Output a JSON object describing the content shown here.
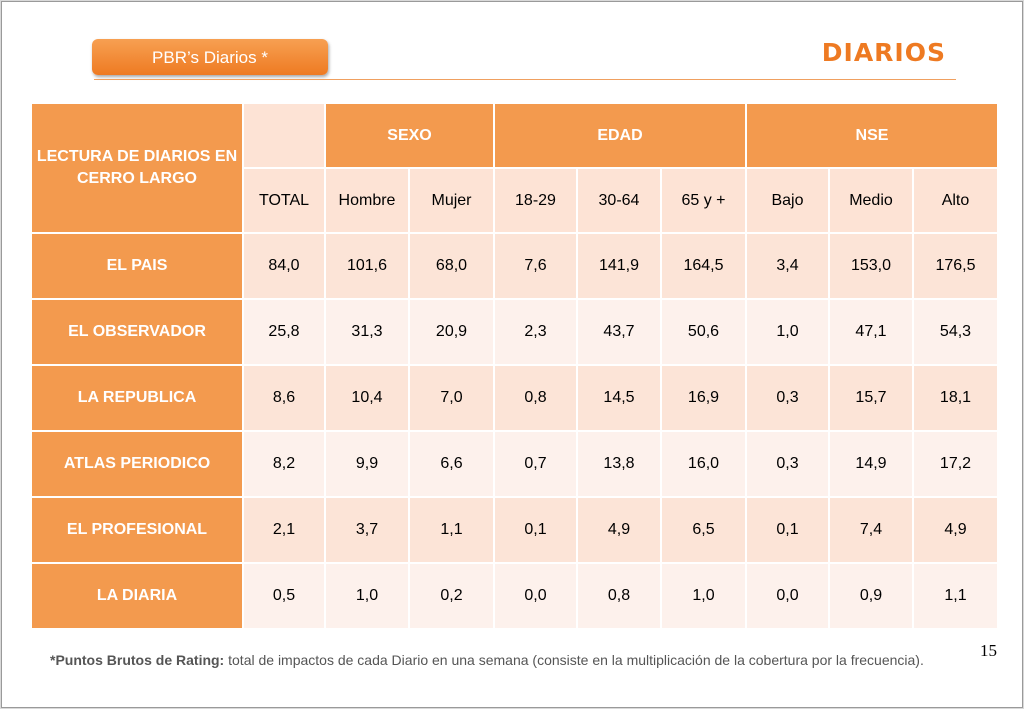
{
  "header": {
    "pill_label": "PBR’s Diarios  *",
    "title": "DIARIOS"
  },
  "table": {
    "corner_label": "LECTURA DE DIARIOS EN CERRO LARGO",
    "groups": [
      "SEXO",
      "EDAD",
      "NSE"
    ],
    "columns": [
      "TOTAL",
      "Hombre",
      "Mujer",
      "18-29",
      "30-64",
      "65 y +",
      "Bajo",
      "Medio",
      "Alto"
    ],
    "rows": [
      {
        "name": "EL PAIS",
        "values": [
          "84,0",
          "101,6",
          "68,0",
          "7,6",
          "141,9",
          "164,5",
          "3,4",
          "153,0",
          "176,5"
        ]
      },
      {
        "name": "EL OBSERVADOR",
        "values": [
          "25,8",
          "31,3",
          "20,9",
          "2,3",
          "43,7",
          "50,6",
          "1,0",
          "47,1",
          "54,3"
        ]
      },
      {
        "name": "LA REPUBLICA",
        "values": [
          "8,6",
          "10,4",
          "7,0",
          "0,8",
          "14,5",
          "16,9",
          "0,3",
          "15,7",
          "18,1"
        ]
      },
      {
        "name": "ATLAS PERIODICO",
        "values": [
          "8,2",
          "9,9",
          "6,6",
          "0,7",
          "13,8",
          "16,0",
          "0,3",
          "14,9",
          "17,2"
        ]
      },
      {
        "name": "EL PROFESIONAL",
        "values": [
          "2,1",
          "3,7",
          "1,1",
          "0,1",
          "4,9",
          "6,5",
          "0,1",
          "7,4",
          "4,9"
        ]
      },
      {
        "name": "LA DIARIA",
        "values": [
          "0,5",
          "1,0",
          "0,2",
          "0,0",
          "0,8",
          "1,0",
          "0,0",
          "0,9",
          "1,1"
        ]
      }
    ]
  },
  "footnote": {
    "term": "*Puntos Brutos de Rating:",
    "text": " total de impactos de cada Diario en una semana (consiste en la multiplicación de la cobertura por la frecuencia)."
  },
  "page_number": "15",
  "colors": {
    "accent": "#ee7a22",
    "header_fill": "#f39a4e",
    "row_even": "#fce4d7",
    "row_odd": "#fdf1ec"
  }
}
